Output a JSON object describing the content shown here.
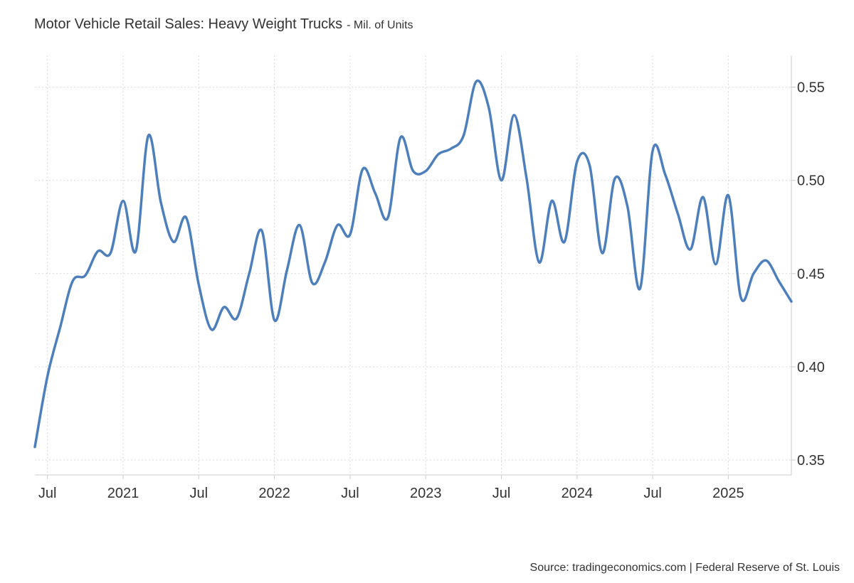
{
  "chart_data": {
    "type": "line",
    "title": "Motor Vehicle Retail Sales: Heavy Weight Trucks",
    "subtitle": "- Mil. of Units",
    "source": "Source: tradingeconomics.com | Federal Reserve of St. Louis",
    "color": "#4d7fbc",
    "x": [
      "2020-06",
      "2020-07",
      "2020-08",
      "2020-09",
      "2020-10",
      "2020-11",
      "2020-12",
      "2021-01",
      "2021-02",
      "2021-03",
      "2021-04",
      "2021-05",
      "2021-06",
      "2021-07",
      "2021-08",
      "2021-09",
      "2021-10",
      "2021-11",
      "2021-12",
      "2022-01",
      "2022-02",
      "2022-03",
      "2022-04",
      "2022-05",
      "2022-06",
      "2022-07",
      "2022-08",
      "2022-09",
      "2022-10",
      "2022-11",
      "2022-12",
      "2023-01",
      "2023-02",
      "2023-03",
      "2023-04",
      "2023-05",
      "2023-06",
      "2023-07",
      "2023-08",
      "2023-09",
      "2023-10",
      "2023-11",
      "2023-12",
      "2024-01",
      "2024-02",
      "2024-03",
      "2024-04",
      "2024-05",
      "2024-06",
      "2024-07",
      "2024-08",
      "2024-09",
      "2024-10",
      "2024-11",
      "2024-12",
      "2025-01",
      "2025-02",
      "2025-03",
      "2025-04",
      "2025-05",
      "2025-06"
    ],
    "values": [
      0.357,
      0.395,
      0.421,
      0.446,
      0.449,
      0.462,
      0.461,
      0.489,
      0.462,
      0.524,
      0.488,
      0.467,
      0.48,
      0.444,
      0.42,
      0.432,
      0.426,
      0.45,
      0.473,
      0.425,
      0.452,
      0.476,
      0.445,
      0.456,
      0.476,
      0.471,
      0.506,
      0.493,
      0.48,
      0.523,
      0.505,
      0.505,
      0.514,
      0.517,
      0.524,
      0.553,
      0.539,
      0.5,
      0.535,
      0.501,
      0.456,
      0.489,
      0.467,
      0.51,
      0.508,
      0.461,
      0.501,
      0.486,
      0.442,
      0.516,
      0.503,
      0.482,
      0.463,
      0.491,
      0.455,
      0.492,
      0.437,
      0.45,
      0.457,
      0.446,
      0.435
    ],
    "xlim": [
      "2020-06",
      "2025-06"
    ],
    "xticks": [
      {
        "value": "2020-07",
        "label": "Jul"
      },
      {
        "value": "2021-01",
        "label": "2021"
      },
      {
        "value": "2021-07",
        "label": "Jul"
      },
      {
        "value": "2022-01",
        "label": "2022"
      },
      {
        "value": "2022-07",
        "label": "Jul"
      },
      {
        "value": "2023-01",
        "label": "2023"
      },
      {
        "value": "2023-07",
        "label": "Jul"
      },
      {
        "value": "2024-01",
        "label": "2024"
      },
      {
        "value": "2024-07",
        "label": "Jul"
      },
      {
        "value": "2025-01",
        "label": "2025"
      }
    ],
    "ylim": [
      0.342,
      0.567
    ],
    "yticks": [
      0.35,
      {
        "value": 0.4,
        "label": "0.40"
      },
      0.45,
      {
        "value": 0.5,
        "label": "0.50"
      },
      0.55
    ],
    "grid": true
  }
}
